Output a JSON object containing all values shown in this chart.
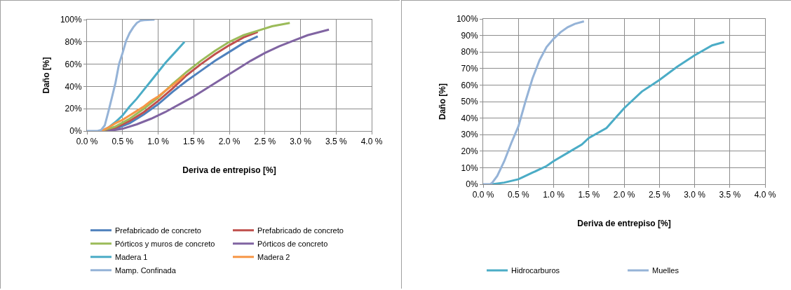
{
  "chart_data": [
    {
      "type": "line",
      "xlabel": "Deriva de entrepiso [%]",
      "ylabel": "Daño [%]",
      "xlim": [
        0,
        4
      ],
      "xticks": [
        {
          "value": 0,
          "label": "0.0 %"
        },
        {
          "value": 0.5,
          "label": "0.5 %"
        },
        {
          "value": 1,
          "label": "1.0 %"
        },
        {
          "value": 1.5,
          "label": "1.5 %"
        },
        {
          "value": 2,
          "label": "2.0 %"
        },
        {
          "value": 2.5,
          "label": "2.5 %"
        },
        {
          "value": 3,
          "label": "3.0 %"
        },
        {
          "value": 3.5,
          "label": "3.5 %"
        },
        {
          "value": 4,
          "label": "4.0 %"
        }
      ],
      "ylim": [
        0,
        100
      ],
      "yticks": [
        {
          "value": 0,
          "label": "0%"
        },
        {
          "value": 20,
          "label": "20%"
        },
        {
          "value": 40,
          "label": "40%"
        },
        {
          "value": 60,
          "label": "60%"
        },
        {
          "value": 80,
          "label": "80%"
        },
        {
          "value": 100,
          "label": "100%"
        }
      ],
      "grid": true,
      "legend": "bottom",
      "series": [
        {
          "name": "Prefabricado de concreto",
          "color": "#4f81bd",
          "x": [
            0.2,
            0.4,
            0.6,
            0.8,
            1.0,
            1.2,
            1.4,
            1.6,
            1.8,
            2.0,
            2.2,
            2.4
          ],
          "values": [
            0,
            2,
            7,
            15,
            24,
            35,
            45,
            54,
            63,
            71,
            79,
            85
          ]
        },
        {
          "name": "Prefabricado de concreto",
          "color": "#c0504d",
          "x": [
            0.2,
            0.4,
            0.6,
            0.8,
            1.0,
            1.2,
            1.4,
            1.6,
            1.8,
            2.0,
            2.2,
            2.4
          ],
          "values": [
            0,
            3,
            9,
            17,
            27,
            38,
            50,
            60,
            69,
            77,
            84,
            89
          ]
        },
        {
          "name": "Pórticos y muros de concreto",
          "color": "#9bbb59",
          "x": [
            0.2,
            0.4,
            0.6,
            0.8,
            1.0,
            1.2,
            1.4,
            1.6,
            1.8,
            2.0,
            2.2,
            2.4,
            2.6,
            2.85
          ],
          "values": [
            0,
            4,
            11,
            20,
            30,
            42,
            53,
            63,
            72,
            80,
            86,
            90,
            94,
            97
          ]
        },
        {
          "name": "Pórticos de concreto",
          "color": "#8064a2",
          "x": [
            0.3,
            0.5,
            0.7,
            0.9,
            1.1,
            1.3,
            1.5,
            1.7,
            1.9,
            2.1,
            2.3,
            2.5,
            2.7,
            2.9,
            3.1,
            3.4
          ],
          "values": [
            0,
            2,
            6,
            11,
            17,
            24,
            31,
            39,
            47,
            55,
            63,
            70,
            76,
            81,
            86,
            91
          ]
        },
        {
          "name": "Madera 1",
          "color": "#4bacc6",
          "x": [
            0.2,
            0.3,
            0.4,
            0.5,
            0.6,
            0.7,
            0.8,
            0.9,
            1.0,
            1.1,
            1.2,
            1.3,
            1.37
          ],
          "values": [
            0,
            3,
            8,
            14,
            22,
            29,
            37,
            45,
            53,
            61,
            68,
            75,
            80
          ]
        },
        {
          "name": "Madera 2",
          "color": "#f79646",
          "x": [
            0.2,
            0.3,
            0.4,
            0.5,
            0.6,
            0.7,
            0.8,
            0.9,
            1.0,
            1.1,
            1.2,
            1.3,
            1.37
          ],
          "values": [
            0,
            3,
            7,
            10,
            14,
            18,
            22,
            27,
            31,
            36,
            41,
            46,
            50
          ]
        },
        {
          "name": "Mamp. Confinada",
          "color": "#95b3d7",
          "x": [
            0,
            0.15,
            0.2,
            0.25,
            0.3,
            0.35,
            0.4,
            0.45,
            0.5,
            0.55,
            0.6,
            0.65,
            0.7,
            0.75,
            0.8,
            0.95
          ],
          "values": [
            0,
            0,
            1,
            5,
            17,
            30,
            43,
            60,
            70,
            81,
            88,
            93,
            97,
            99,
            99.5,
            100
          ]
        }
      ]
    },
    {
      "type": "line",
      "xlabel": "Deriva de entrepiso [%]",
      "ylabel": "Daño [%]",
      "xlim": [
        0,
        4
      ],
      "xticks": [
        {
          "value": 0,
          "label": "0.0 %"
        },
        {
          "value": 0.5,
          "label": "0.5 %"
        },
        {
          "value": 1,
          "label": "1.0 %"
        },
        {
          "value": 1.5,
          "label": "1.5 %"
        },
        {
          "value": 2,
          "label": "2.0 %"
        },
        {
          "value": 2.5,
          "label": "2.5 %"
        },
        {
          "value": 3,
          "label": "3.0 %"
        },
        {
          "value": 3.5,
          "label": "3.5 %"
        },
        {
          "value": 4,
          "label": "4.0 %"
        }
      ],
      "ylim": [
        0,
        100
      ],
      "yticks": [
        {
          "value": 0,
          "label": "0%"
        },
        {
          "value": 10,
          "label": "10%"
        },
        {
          "value": 20,
          "label": "20%"
        },
        {
          "value": 30,
          "label": "30%"
        },
        {
          "value": 40,
          "label": "40%"
        },
        {
          "value": 50,
          "label": "50%"
        },
        {
          "value": 60,
          "label": "60%"
        },
        {
          "value": 70,
          "label": "70%"
        },
        {
          "value": 80,
          "label": "80%"
        },
        {
          "value": 90,
          "label": "90%"
        },
        {
          "value": 100,
          "label": "100%"
        }
      ],
      "grid": true,
      "legend": "bottom",
      "series": [
        {
          "name": "Hidrocarburos",
          "color": "#4bacc6",
          "x": [
            0.13,
            0.3,
            0.5,
            0.7,
            0.9,
            1.0,
            1.2,
            1.4,
            1.5,
            1.75,
            2.0,
            2.25,
            2.5,
            2.75,
            3.0,
            3.25,
            3.42
          ],
          "values": [
            0,
            1,
            3,
            7,
            11,
            14,
            19,
            24,
            28,
            34,
            46,
            56,
            63,
            71,
            78,
            84,
            86
          ]
        },
        {
          "name": "Muelles",
          "color": "#95b3d7",
          "x": [
            0,
            0.1,
            0.13,
            0.2,
            0.3,
            0.4,
            0.5,
            0.6,
            0.7,
            0.8,
            0.9,
            1.0,
            1.1,
            1.2,
            1.3,
            1.43
          ],
          "values": [
            0,
            0,
            1,
            5,
            14,
            25,
            35,
            50,
            64,
            75,
            83,
            88,
            92,
            95,
            97,
            98.5
          ]
        }
      ]
    }
  ]
}
